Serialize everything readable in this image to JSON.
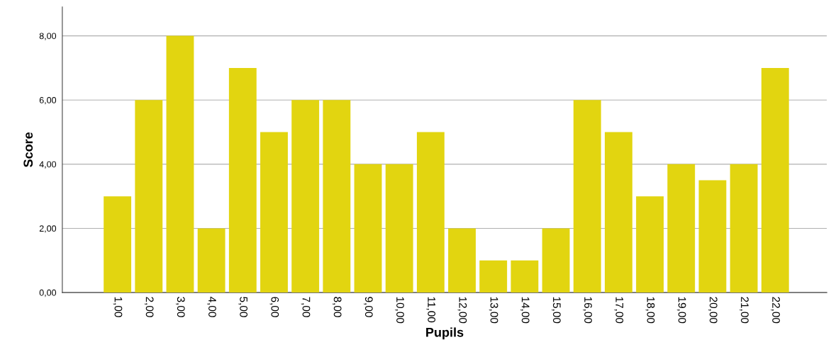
{
  "chart_data": {
    "type": "bar",
    "xlabel": "Pupils",
    "ylabel": "Score",
    "categories": [
      "1,00",
      "2,00",
      "3,00",
      "4,00",
      "5,00",
      "6,00",
      "7,00",
      "8,00",
      "9,00",
      "10,00",
      "11,00",
      "12,00",
      "13,00",
      "14,00",
      "15,00",
      "16,00",
      "17,00",
      "18,00",
      "19,00",
      "20,00",
      "21,00",
      "22,00"
    ],
    "values": [
      3,
      6,
      8,
      2,
      7,
      5,
      6,
      6,
      4,
      4,
      5,
      2,
      1,
      1,
      2,
      6,
      5,
      3,
      4,
      3.5,
      4,
      7
    ],
    "color": "#e2d510",
    "ylim": [
      0,
      8.9
    ],
    "yticks": [
      {
        "value": 0,
        "label": "0,00"
      },
      {
        "value": 2,
        "label": "2,00"
      },
      {
        "value": 4,
        "label": "4,00"
      },
      {
        "value": 6,
        "label": "6,00"
      },
      {
        "value": 8,
        "label": "8,00"
      }
    ],
    "grid": "y"
  }
}
